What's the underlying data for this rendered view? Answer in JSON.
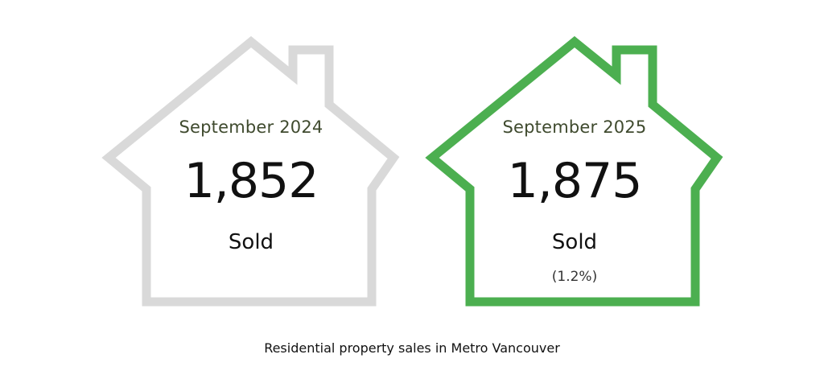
{
  "cards": [
    {
      "period": "September 2024",
      "count": "1,852",
      "status": "Sold",
      "change": "",
      "outline_color": "#d9d9d9"
    },
    {
      "period": "September 2025",
      "count": "1,875",
      "status": "Sold",
      "change": "(1.2%)",
      "outline_color": "#4caf50"
    }
  ],
  "caption": "Residential property sales in Metro Vancouver"
}
